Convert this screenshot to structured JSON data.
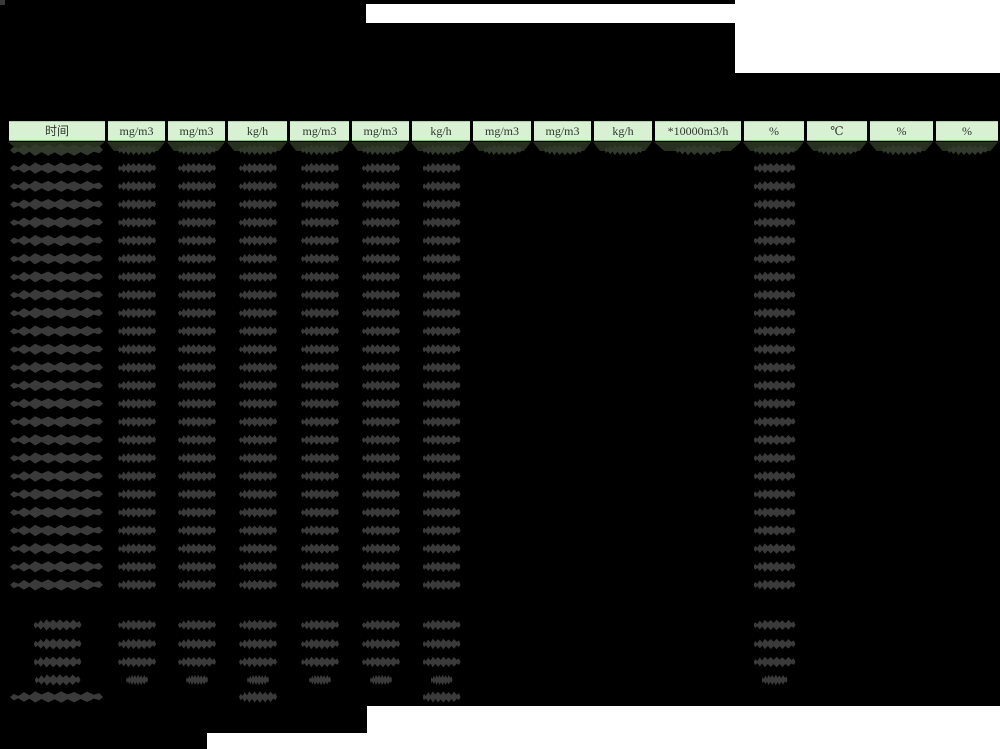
{
  "palette": {
    "background": "#000000",
    "page_backdrop": "#ffffff",
    "header_fill": "#d9f1d3",
    "header_text": "#2e382e",
    "header_gap": "#000000",
    "blob": "#3a3a3a",
    "first_row_blob": "#323a2e",
    "header_shadow": "#27301f"
  },
  "table": {
    "columns": [
      {
        "label": "时间"
      },
      {
        "label": "mg/m3"
      },
      {
        "label": "mg/m3"
      },
      {
        "label": "kg/h"
      },
      {
        "label": "mg/m3"
      },
      {
        "label": "mg/m3"
      },
      {
        "label": "kg/h"
      },
      {
        "label": "mg/m3"
      },
      {
        "label": "mg/m3"
      },
      {
        "label": "kg/h"
      },
      {
        "label": "*10000m3/h"
      },
      {
        "label": "%"
      },
      {
        "label": "℃"
      },
      {
        "label": "%"
      },
      {
        "label": "%"
      }
    ],
    "body": {
      "data_row_count": 25,
      "first_row_populated_columns": [
        0,
        1,
        2,
        3,
        4,
        5,
        6,
        7,
        8,
        9,
        10,
        11,
        12,
        13,
        14
      ],
      "data_row_populated_columns": [
        0,
        1,
        2,
        3,
        4,
        5,
        6,
        11
      ],
      "summary_row_count": 4,
      "summary_row_populated_columns": [
        0,
        1,
        2,
        3,
        4,
        5,
        6,
        11
      ],
      "footer_row_populated_columns": [
        0,
        3,
        6
      ],
      "values_note": "all cell values in the screenshot are obscured illegible dark blobs over a black redaction overlay"
    }
  }
}
